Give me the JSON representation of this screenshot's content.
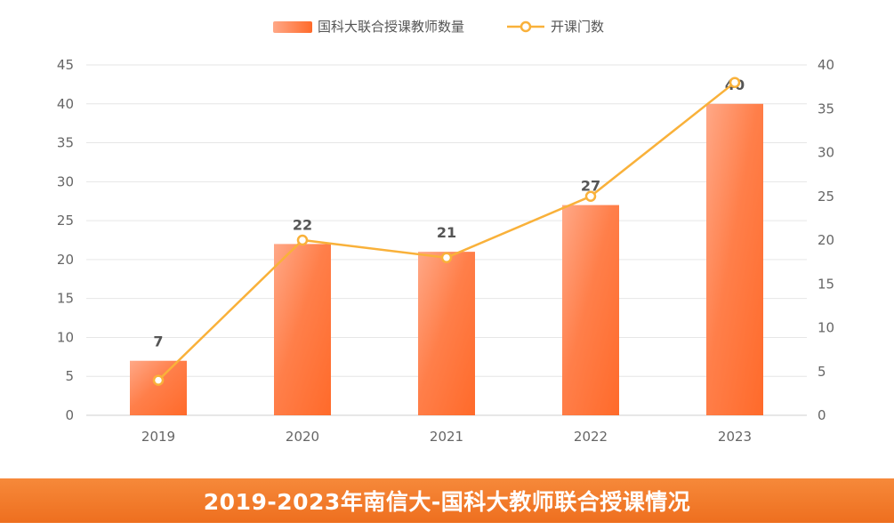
{
  "chart_data": {
    "type": "bar",
    "categories": [
      "2019",
      "2020",
      "2021",
      "2022",
      "2023"
    ],
    "series": [
      {
        "name": "国科大联合授课教师数量",
        "type": "bar",
        "axis": "left",
        "values": [
          7,
          22,
          21,
          27,
          40
        ],
        "data_labels": [
          "7",
          "22",
          "21",
          "27",
          "40"
        ],
        "color": "#ff7a45"
      },
      {
        "name": "开课门数",
        "type": "line",
        "axis": "right",
        "values": [
          4,
          20,
          18,
          25,
          38
        ],
        "color": "#f9b13a"
      }
    ],
    "left_axis": {
      "min": 0,
      "max": 45,
      "ticks": [
        "0",
        "5",
        "10",
        "15",
        "20",
        "25",
        "30",
        "35",
        "40",
        "45"
      ]
    },
    "right_axis": {
      "min": 0,
      "max": 40,
      "ticks": [
        "0",
        "5",
        "10",
        "15",
        "20",
        "25",
        "30",
        "35",
        "40"
      ]
    },
    "grid": true,
    "legend_position": "top-center"
  },
  "footer": {
    "title": "2019-2023年南信大-国科大教师联合授课情况"
  }
}
